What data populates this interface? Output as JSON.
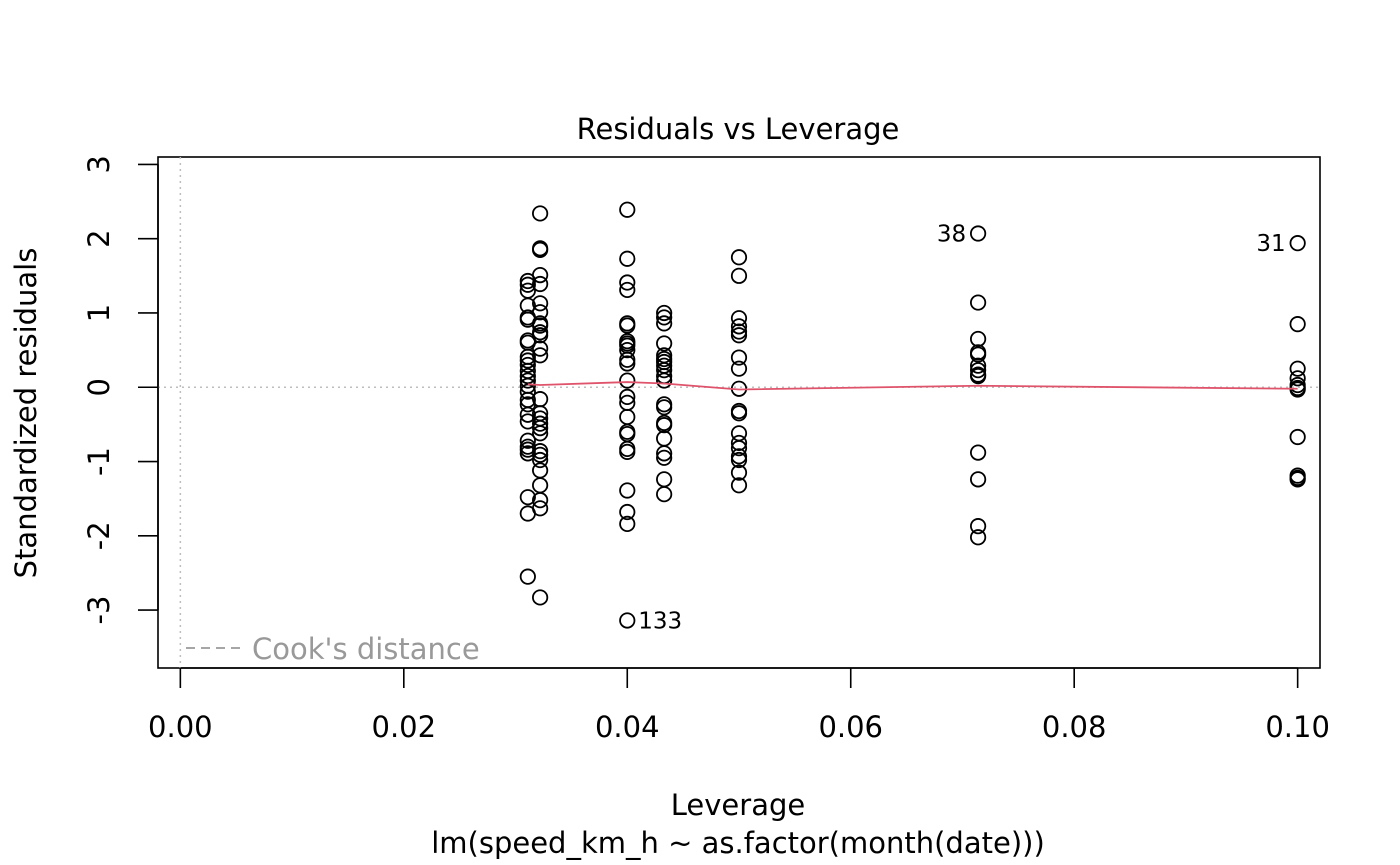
{
  "chart_data": {
    "type": "scatter",
    "title": "Residuals vs Leverage",
    "xlabel": "Leverage",
    "subtitle": "lm(speed_km_h ~ as.factor(month(date)))",
    "ylabel": "Standardized residuals",
    "xlim": [
      -0.002,
      0.102
    ],
    "ylim": [
      -3.78,
      3.1
    ],
    "x_ticks": [
      0.0,
      0.02,
      0.04,
      0.06,
      0.08,
      0.1
    ],
    "x_tick_labels": [
      "0.00",
      "0.02",
      "0.04",
      "0.06",
      "0.08",
      "0.10"
    ],
    "y_ticks": [
      -3,
      -2,
      -1,
      0,
      1,
      2,
      3
    ],
    "y_tick_labels": [
      "-3",
      "-2",
      "-1",
      "0",
      "1",
      "2",
      "3"
    ],
    "grid": false,
    "reference_lines": {
      "horizontal_y": 0,
      "vertical_x": 0,
      "color": "#bebebe",
      "style": "dotted"
    },
    "legend": {
      "label": "Cook's distance",
      "position": "bottom-left",
      "color": "#999999"
    },
    "series": [
      {
        "marker": "open-circle",
        "color": "#000000",
        "points": [
          [
            0.0311,
            1.43
          ],
          [
            0.0311,
            1.38
          ],
          [
            0.0311,
            1.3
          ],
          [
            0.0311,
            1.1
          ],
          [
            0.0311,
            0.94
          ],
          [
            0.0311,
            0.91
          ],
          [
            0.0311,
            0.63
          ],
          [
            0.0311,
            0.6
          ],
          [
            0.0311,
            0.41
          ],
          [
            0.0311,
            0.36
          ],
          [
            0.0311,
            0.3
          ],
          [
            0.0311,
            0.22
          ],
          [
            0.0311,
            0.15
          ],
          [
            0.0311,
            0.09
          ],
          [
            0.0311,
            0.02
          ],
          [
            0.0311,
            -0.06
          ],
          [
            0.0311,
            -0.17
          ],
          [
            0.0311,
            -0.23
          ],
          [
            0.0311,
            -0.37
          ],
          [
            0.0311,
            -0.46
          ],
          [
            0.0311,
            -0.72
          ],
          [
            0.0311,
            -0.8
          ],
          [
            0.0311,
            -0.84
          ],
          [
            0.0311,
            -0.89
          ],
          [
            0.0311,
            -1.48
          ],
          [
            0.0311,
            -1.7
          ],
          [
            0.0311,
            -2.55
          ],
          [
            0.0322,
            2.34
          ],
          [
            0.0322,
            1.87
          ],
          [
            0.0322,
            1.85
          ],
          [
            0.0322,
            1.51
          ],
          [
            0.0322,
            1.39
          ],
          [
            0.0322,
            1.13
          ],
          [
            0.0322,
            1.01
          ],
          [
            0.0322,
            0.86
          ],
          [
            0.0322,
            0.83
          ],
          [
            0.0322,
            0.74
          ],
          [
            0.0322,
            0.7
          ],
          [
            0.0322,
            0.52
          ],
          [
            0.0322,
            0.43
          ],
          [
            0.0322,
            -0.16
          ],
          [
            0.0322,
            -0.35
          ],
          [
            0.0322,
            -0.42
          ],
          [
            0.0322,
            -0.49
          ],
          [
            0.0322,
            -0.55
          ],
          [
            0.0322,
            -0.62
          ],
          [
            0.0322,
            -0.86
          ],
          [
            0.0322,
            -0.91
          ],
          [
            0.0322,
            -0.98
          ],
          [
            0.0322,
            -1.12
          ],
          [
            0.0322,
            -1.32
          ],
          [
            0.0322,
            -1.52
          ],
          [
            0.0322,
            -1.63
          ],
          [
            0.0322,
            -2.83
          ],
          [
            0.04,
            2.39
          ],
          [
            0.04,
            1.73
          ],
          [
            0.04,
            1.41
          ],
          [
            0.04,
            1.31
          ],
          [
            0.04,
            0.86
          ],
          [
            0.04,
            0.83
          ],
          [
            0.04,
            0.62
          ],
          [
            0.04,
            0.59
          ],
          [
            0.04,
            0.56
          ],
          [
            0.04,
            0.5
          ],
          [
            0.04,
            0.37
          ],
          [
            0.04,
            0.32
          ],
          [
            0.04,
            0.09
          ],
          [
            0.04,
            -0.13
          ],
          [
            0.04,
            -0.21
          ],
          [
            0.04,
            -0.4
          ],
          [
            0.04,
            -0.6
          ],
          [
            0.04,
            -0.63
          ],
          [
            0.04,
            -0.83
          ],
          [
            0.04,
            -0.87
          ],
          [
            0.04,
            -1.39
          ],
          [
            0.04,
            -1.68
          ],
          [
            0.04,
            -1.84
          ],
          [
            0.04,
            -3.14
          ],
          [
            0.0433,
            1.0
          ],
          [
            0.0433,
            0.94
          ],
          [
            0.0433,
            0.86
          ],
          [
            0.0433,
            0.59
          ],
          [
            0.0433,
            0.43
          ],
          [
            0.0433,
            0.38
          ],
          [
            0.0433,
            0.34
          ],
          [
            0.0433,
            0.29
          ],
          [
            0.0433,
            0.23
          ],
          [
            0.0433,
            0.15
          ],
          [
            0.0433,
            0.09
          ],
          [
            0.0433,
            -0.23
          ],
          [
            0.0433,
            -0.27
          ],
          [
            0.0433,
            -0.48
          ],
          [
            0.0433,
            -0.51
          ],
          [
            0.0433,
            -0.69
          ],
          [
            0.0433,
            -0.89
          ],
          [
            0.0433,
            -0.95
          ],
          [
            0.0433,
            -1.24
          ],
          [
            0.0433,
            -1.44
          ],
          [
            0.05,
            1.75
          ],
          [
            0.05,
            1.5
          ],
          [
            0.05,
            0.93
          ],
          [
            0.05,
            0.82
          ],
          [
            0.05,
            0.75
          ],
          [
            0.05,
            0.7
          ],
          [
            0.05,
            0.4
          ],
          [
            0.05,
            0.25
          ],
          [
            0.05,
            -0.02
          ],
          [
            0.05,
            -0.32
          ],
          [
            0.05,
            -0.35
          ],
          [
            0.05,
            -0.62
          ],
          [
            0.05,
            -0.75
          ],
          [
            0.05,
            -0.82
          ],
          [
            0.05,
            -0.93
          ],
          [
            0.05,
            -0.98
          ],
          [
            0.05,
            -1.15
          ],
          [
            0.05,
            -1.32
          ],
          [
            0.0714,
            2.07
          ],
          [
            0.0714,
            1.14
          ],
          [
            0.0714,
            0.65
          ],
          [
            0.0714,
            0.47
          ],
          [
            0.0714,
            0.44
          ],
          [
            0.0714,
            0.29
          ],
          [
            0.0714,
            0.23
          ],
          [
            0.0714,
            0.17
          ],
          [
            0.0714,
            0.15
          ],
          [
            0.0714,
            -0.88
          ],
          [
            0.0714,
            -1.24
          ],
          [
            0.0714,
            -1.87
          ],
          [
            0.0714,
            -2.02
          ],
          [
            0.1,
            1.94
          ],
          [
            0.1,
            0.85
          ],
          [
            0.1,
            0.25
          ],
          [
            0.1,
            0.12
          ],
          [
            0.1,
            0.03
          ],
          [
            0.1,
            -0.01
          ],
          [
            0.1,
            -0.03
          ],
          [
            0.1,
            -0.67
          ],
          [
            0.1,
            -1.19
          ],
          [
            0.1,
            -1.22
          ],
          [
            0.1,
            -1.24
          ]
        ]
      }
    ],
    "smooth_line": {
      "color": "#df536b",
      "points": [
        [
          0.0311,
          0.04
        ],
        [
          0.0322,
          0.03
        ],
        [
          0.04,
          0.07
        ],
        [
          0.0433,
          0.05
        ],
        [
          0.05,
          -0.03
        ],
        [
          0.0714,
          0.02
        ],
        [
          0.1,
          -0.02
        ]
      ]
    },
    "annotations": [
      {
        "label": "38",
        "x": 0.0714,
        "y": 2.07,
        "side": "left"
      },
      {
        "label": "31",
        "x": 0.1,
        "y": 1.94,
        "side": "left"
      },
      {
        "label": "133",
        "x": 0.04,
        "y": -3.14,
        "side": "right"
      }
    ]
  }
}
